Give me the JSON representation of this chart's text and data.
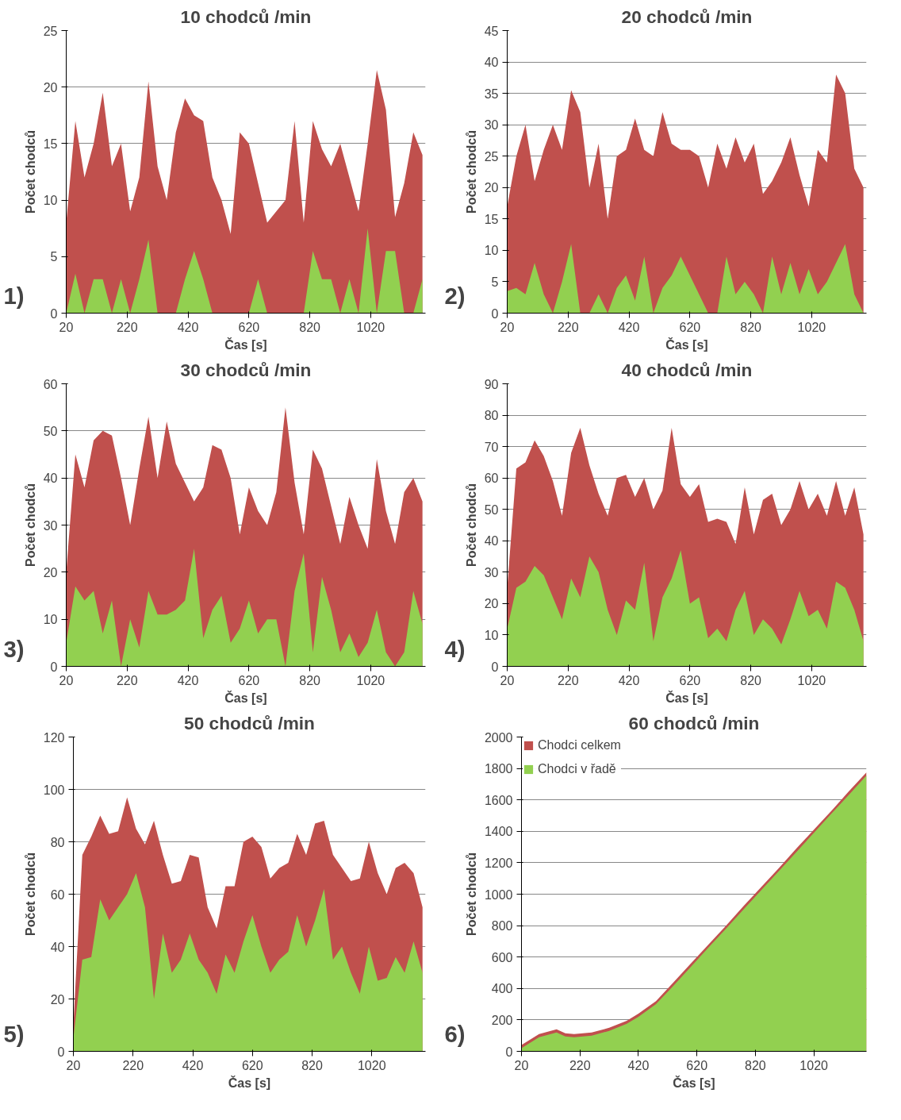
{
  "chart_data": [
    {
      "type": "area",
      "title": "10 chodců /min",
      "xlabel": "Čas [s]",
      "ylabel": "Počet chodců",
      "annotations": [
        "1)"
      ],
      "grid": "y",
      "xlim": [
        20,
        1200
      ],
      "xticks": [
        20,
        220,
        420,
        620,
        820,
        1020
      ],
      "ylim": [
        0,
        25
      ],
      "yticks": [
        0,
        5,
        10,
        15,
        20,
        25
      ],
      "x": [
        20,
        50,
        80,
        110,
        140,
        170,
        200,
        230,
        260,
        290,
        320,
        350,
        380,
        410,
        440,
        470,
        500,
        530,
        560,
        590,
        620,
        650,
        680,
        710,
        740,
        770,
        800,
        830,
        860,
        890,
        920,
        950,
        980,
        1010,
        1040,
        1070,
        1100,
        1130,
        1160,
        1190
      ],
      "series": [
        {
          "color": "#c0504d",
          "values": [
            8,
            17,
            12,
            15,
            19.5,
            13,
            15,
            9,
            12,
            20.5,
            13,
            10,
            16,
            19,
            17.5,
            17,
            12,
            10,
            7,
            16,
            15,
            11.5,
            8,
            9,
            10,
            17,
            8,
            17,
            14.5,
            13,
            15,
            12,
            9,
            15,
            21.5,
            18,
            8.5,
            11.5,
            16,
            14
          ]
        },
        {
          "color": "#92d050",
          "values": [
            0,
            3.5,
            0,
            3,
            3,
            0,
            3,
            0,
            3,
            6.5,
            0,
            0,
            0,
            3,
            5.5,
            3,
            0,
            0,
            0,
            0,
            0,
            3,
            0,
            0,
            0,
            0,
            0,
            5.5,
            3,
            3,
            0,
            3,
            0,
            7.5,
            0,
            5.5,
            5.5,
            0,
            0,
            3
          ]
        }
      ]
    },
    {
      "type": "area",
      "title": "20 chodců /min",
      "xlabel": "Čas [s]",
      "ylabel": "Počet chodců",
      "annotations": [
        "2)"
      ],
      "grid": "y",
      "xlim": [
        20,
        1200
      ],
      "xticks": [
        20,
        220,
        420,
        620,
        820,
        1020
      ],
      "ylim": [
        0,
        45
      ],
      "yticks": [
        0,
        5,
        10,
        15,
        20,
        25,
        30,
        35,
        40,
        45
      ],
      "x": [
        20,
        50,
        80,
        110,
        140,
        170,
        200,
        230,
        260,
        290,
        320,
        350,
        380,
        410,
        440,
        470,
        500,
        530,
        560,
        590,
        620,
        650,
        680,
        710,
        740,
        770,
        800,
        830,
        860,
        890,
        920,
        950,
        980,
        1010,
        1040,
        1070,
        1100,
        1130,
        1160,
        1190
      ],
      "series": [
        {
          "color": "#c0504d",
          "values": [
            17,
            25,
            30,
            21,
            26,
            30,
            26,
            35.5,
            32,
            20,
            27,
            15,
            25,
            26,
            31,
            26,
            25,
            32,
            27,
            26,
            26,
            25,
            20,
            27,
            23,
            28,
            24,
            27,
            19,
            21,
            24,
            28,
            22,
            17,
            26,
            24,
            38,
            35,
            23,
            20
          ]
        },
        {
          "color": "#92d050",
          "values": [
            3.5,
            4,
            3,
            8,
            3,
            0,
            5,
            11,
            0,
            0,
            3,
            0,
            4,
            6,
            2,
            9,
            0,
            4,
            6,
            9,
            6,
            3,
            0,
            0,
            9,
            3,
            5,
            3,
            0,
            9,
            3,
            8,
            3,
            7,
            3,
            5,
            8,
            11,
            3,
            0
          ]
        }
      ]
    },
    {
      "type": "area",
      "title": "30 chodců /min",
      "xlabel": "Čas [s]",
      "ylabel": "Počet chodců",
      "annotations": [
        "3)"
      ],
      "grid": "y",
      "xlim": [
        20,
        1200
      ],
      "xticks": [
        20,
        220,
        420,
        620,
        820,
        1020
      ],
      "ylim": [
        0,
        60
      ],
      "yticks": [
        0,
        10,
        20,
        30,
        40,
        50,
        60
      ],
      "x": [
        20,
        50,
        80,
        110,
        140,
        170,
        200,
        230,
        260,
        290,
        320,
        350,
        380,
        410,
        440,
        470,
        500,
        530,
        560,
        590,
        620,
        650,
        680,
        710,
        740,
        770,
        800,
        830,
        860,
        890,
        920,
        950,
        980,
        1010,
        1040,
        1070,
        1100,
        1130,
        1160,
        1190
      ],
      "series": [
        {
          "color": "#c0504d",
          "values": [
            20,
            45,
            38,
            48,
            50,
            49,
            40,
            30,
            42,
            53,
            40,
            52,
            43,
            39,
            35,
            38,
            47,
            46,
            40,
            28,
            38,
            33,
            30,
            37,
            55,
            39,
            28,
            46,
            42,
            34,
            26,
            36,
            30,
            25,
            44,
            33,
            26,
            37,
            40,
            35
          ]
        },
        {
          "color": "#92d050",
          "values": [
            5,
            17,
            14,
            16,
            7,
            14,
            0,
            10,
            4,
            16,
            11,
            11,
            12,
            14,
            25,
            6,
            12,
            15,
            5,
            8,
            14,
            7,
            10,
            10,
            0,
            16,
            24,
            3,
            19,
            12,
            3,
            7,
            2,
            5,
            12,
            3,
            0,
            3,
            16,
            9
          ]
        }
      ]
    },
    {
      "type": "area",
      "title": "40 chodců /min",
      "xlabel": "Čas [s]",
      "ylabel": "Počet chodců",
      "annotations": [
        "4)"
      ],
      "grid": "y",
      "xlim": [
        20,
        1200
      ],
      "xticks": [
        20,
        220,
        420,
        620,
        820,
        1020
      ],
      "ylim": [
        0,
        90
      ],
      "yticks": [
        0,
        10,
        20,
        30,
        40,
        50,
        60,
        70,
        80,
        90
      ],
      "x": [
        20,
        50,
        80,
        110,
        140,
        170,
        200,
        230,
        260,
        290,
        320,
        350,
        380,
        410,
        440,
        470,
        500,
        530,
        560,
        590,
        620,
        650,
        680,
        710,
        740,
        770,
        800,
        830,
        860,
        890,
        920,
        950,
        980,
        1010,
        1040,
        1070,
        1100,
        1130,
        1160,
        1190
      ],
      "series": [
        {
          "color": "#c0504d",
          "values": [
            25,
            63,
            65,
            72,
            67,
            59,
            48,
            68,
            76,
            64,
            55,
            48,
            60,
            61,
            54,
            60,
            50,
            56,
            76,
            58,
            54,
            58,
            46,
            47,
            46,
            39,
            57,
            42,
            53,
            55,
            45,
            50,
            59,
            50,
            55,
            48,
            59,
            48,
            57,
            42
          ]
        },
        {
          "color": "#92d050",
          "values": [
            12,
            25,
            27,
            32,
            29,
            22,
            15,
            28,
            22,
            35,
            30,
            18,
            10,
            21,
            18,
            33,
            8,
            22,
            28,
            37,
            20,
            22,
            9,
            12,
            8,
            18,
            24,
            10,
            15,
            12,
            7,
            15,
            24,
            16,
            18,
            12,
            27,
            25,
            18,
            8
          ]
        }
      ]
    },
    {
      "type": "area",
      "title": "50 chodců /min",
      "xlabel": "Čas [s]",
      "ylabel": "Počet chodců",
      "annotations": [
        "5)"
      ],
      "grid": "y",
      "xlim": [
        20,
        1200
      ],
      "xticks": [
        20,
        220,
        420,
        620,
        820,
        1020
      ],
      "ylim": [
        0,
        120
      ],
      "yticks": [
        0,
        20,
        40,
        60,
        80,
        100,
        120
      ],
      "x": [
        20,
        50,
        80,
        110,
        140,
        170,
        200,
        230,
        260,
        290,
        320,
        350,
        380,
        410,
        440,
        470,
        500,
        530,
        560,
        590,
        620,
        650,
        680,
        710,
        740,
        770,
        800,
        830,
        860,
        890,
        920,
        950,
        980,
        1010,
        1040,
        1070,
        1100,
        1130,
        1160,
        1190
      ],
      "series": [
        {
          "color": "#c0504d",
          "values": [
            10,
            75,
            82,
            90,
            83,
            84,
            97,
            85,
            79,
            88,
            75,
            64,
            65,
            75,
            74,
            55,
            47,
            63,
            63,
            80,
            82,
            78,
            66,
            70,
            72,
            83,
            75,
            87,
            88,
            75,
            70,
            65,
            66,
            80,
            68,
            60,
            70,
            72,
            68,
            55
          ]
        },
        {
          "color": "#92d050",
          "values": [
            5,
            35,
            36,
            58,
            50,
            55,
            60,
            68,
            55,
            20,
            45,
            30,
            35,
            45,
            35,
            30,
            22,
            37,
            30,
            42,
            52,
            40,
            30,
            35,
            38,
            52,
            40,
            50,
            62,
            35,
            40,
            30,
            22,
            40,
            27,
            28,
            36,
            30,
            42,
            30
          ]
        }
      ]
    },
    {
      "type": "area",
      "title": "60 chodců /min",
      "xlabel": "Čas [s]",
      "ylabel": "Počet chodců",
      "annotations": [
        "6)"
      ],
      "grid": "y",
      "legend": "top left",
      "xlim": [
        20,
        1200
      ],
      "xticks": [
        20,
        220,
        420,
        620,
        820,
        1020
      ],
      "ylim": [
        0,
        2000
      ],
      "yticks": [
        0,
        200,
        400,
        600,
        800,
        1000,
        1200,
        1400,
        1600,
        1800,
        2000
      ],
      "x": [
        20,
        80,
        140,
        170,
        200,
        260,
        320,
        380,
        420,
        480,
        540,
        600,
        660,
        720,
        780,
        840,
        900,
        960,
        1020,
        1080,
        1140,
        1200
      ],
      "series": [
        {
          "name": "Chodci celkem",
          "color": "#c0504d",
          "values": [
            40,
            110,
            140,
            115,
            110,
            120,
            150,
            195,
            240,
            320,
            440,
            560,
            680,
            800,
            925,
            1045,
            1165,
            1290,
            1410,
            1530,
            1655,
            1775
          ]
        },
        {
          "name": "Chodci v řadě",
          "color": "#92d050",
          "values": [
            20,
            90,
            120,
            95,
            90,
            100,
            130,
            175,
            220,
            300,
            418,
            539,
            661,
            782,
            904,
            1025,
            1147,
            1268,
            1390,
            1512,
            1633,
            1755
          ]
        }
      ]
    }
  ]
}
